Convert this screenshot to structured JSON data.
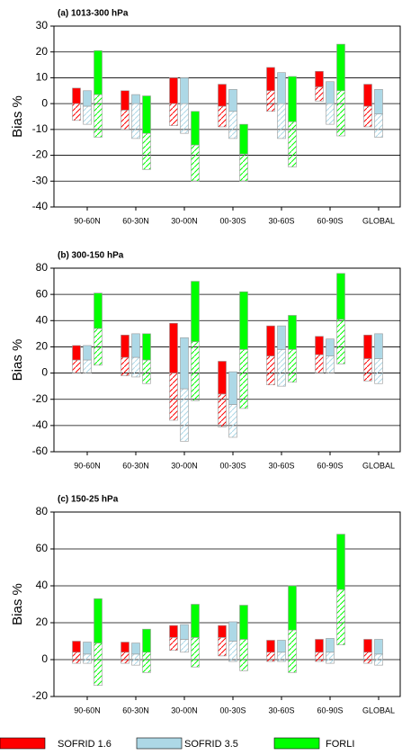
{
  "chart_data": [
    {
      "type": "bar",
      "title": "(a) 1013-300 hPa",
      "ylabel": "Bias %",
      "categories": [
        "90-60N",
        "60-30N",
        "30-00N",
        "00-30S",
        "30-60S",
        "60-90S",
        "GLOBAL"
      ],
      "ylim": [
        -40,
        30
      ],
      "yticks": [
        -40,
        -30,
        -20,
        -10,
        0,
        10,
        20,
        30
      ],
      "grid": true,
      "series": [
        {
          "name": "SOFRID 1.6",
          "color": "#ff0000",
          "lows": [
            -6.5,
            -10,
            -8.5,
            -9,
            -3,
            1,
            -9
          ],
          "values": [
            0,
            -2.5,
            0,
            -1,
            5,
            6.5,
            -1
          ],
          "highs": [
            6,
            5,
            10,
            7.5,
            14,
            12.5,
            7.5
          ]
        },
        {
          "name": "SOFRID 3.5",
          "color": "#add8e6",
          "lows": [
            -8,
            -13.5,
            -11.5,
            -13.5,
            -13.5,
            -8,
            -13
          ],
          "values": [
            -1,
            0,
            0,
            -3,
            0,
            0,
            -4
          ],
          "highs": [
            5,
            3.5,
            10,
            5.5,
            12,
            8.5,
            5.5
          ]
        },
        {
          "name": "FORLI",
          "color": "#00ff00",
          "lows": [
            -13,
            -25.5,
            -30,
            -30,
            -24.5,
            -12.5,
            null
          ],
          "values": [
            3.5,
            -11.5,
            -16,
            -19.5,
            -7,
            5,
            null
          ],
          "highs": [
            20.5,
            3,
            -3,
            -8,
            10.5,
            23,
            null
          ]
        }
      ]
    },
    {
      "type": "bar",
      "title": "(b) 300-150 hPa",
      "ylabel": "Bias %",
      "categories": [
        "90-60N",
        "60-30N",
        "30-00N",
        "00-30S",
        "30-60S",
        "60-90S",
        "GLOBAL"
      ],
      "ylim": [
        -60,
        80
      ],
      "yticks": [
        -60,
        -40,
        -20,
        0,
        20,
        40,
        60,
        80
      ],
      "grid": true,
      "series": [
        {
          "name": "SOFRID 1.6",
          "color": "#ff0000",
          "lows": [
            0,
            -2,
            -36,
            -41,
            -9,
            0,
            -6
          ],
          "values": [
            10,
            12,
            0,
            -16,
            13,
            14,
            11
          ],
          "highs": [
            21,
            29,
            38,
            9,
            36,
            28,
            29
          ]
        },
        {
          "name": "SOFRID 3.5",
          "color": "#add8e6",
          "lows": [
            0,
            -3,
            -52,
            -49,
            -10,
            0,
            -8
          ],
          "values": [
            10,
            12,
            -12,
            -24,
            18,
            13,
            11
          ],
          "highs": [
            21,
            30,
            27,
            1,
            36,
            26,
            30
          ]
        },
        {
          "name": "FORLI",
          "color": "#00ff00",
          "lows": [
            6,
            -8,
            -21,
            -27,
            -7,
            7,
            null
          ],
          "values": [
            34,
            10,
            24,
            18,
            18,
            41,
            null
          ],
          "highs": [
            61,
            30,
            70,
            62,
            44,
            76,
            null
          ]
        }
      ]
    },
    {
      "type": "bar",
      "title": "(c) 150-25 hPa",
      "ylabel": "Bias %",
      "categories": [
        "90-60N",
        "60-30N",
        "30-00N",
        "00-30S",
        "30-60S",
        "60-90S",
        "GLOBAL"
      ],
      "ylim": [
        -20,
        80
      ],
      "yticks": [
        -20,
        0,
        20,
        40,
        60,
        80
      ],
      "grid": true,
      "series": [
        {
          "name": "SOFRID 1.6",
          "color": "#ff0000",
          "lows": [
            -2,
            -2,
            5,
            2,
            -1,
            -1,
            -2
          ],
          "values": [
            4,
            4,
            12,
            12,
            4,
            4,
            4
          ],
          "highs": [
            10,
            9.5,
            18.5,
            18.5,
            10.5,
            11,
            11
          ]
        },
        {
          "name": "SOFRID 3.5",
          "color": "#add8e6",
          "lows": [
            -2,
            -3,
            4,
            -1,
            -1,
            -2,
            -3
          ],
          "values": [
            3,
            3,
            11,
            10,
            4,
            4,
            3
          ],
          "highs": [
            9.5,
            9,
            19,
            20.5,
            10.5,
            11.5,
            11
          ]
        },
        {
          "name": "FORLI",
          "color": "#00ff00",
          "lows": [
            -14,
            -7,
            -4,
            -6,
            -7,
            8,
            null
          ],
          "values": [
            9,
            4,
            12,
            11,
            16,
            38,
            null
          ],
          "highs": [
            33,
            16.5,
            30,
            29.5,
            40,
            68,
            null
          ]
        }
      ]
    }
  ]
}
